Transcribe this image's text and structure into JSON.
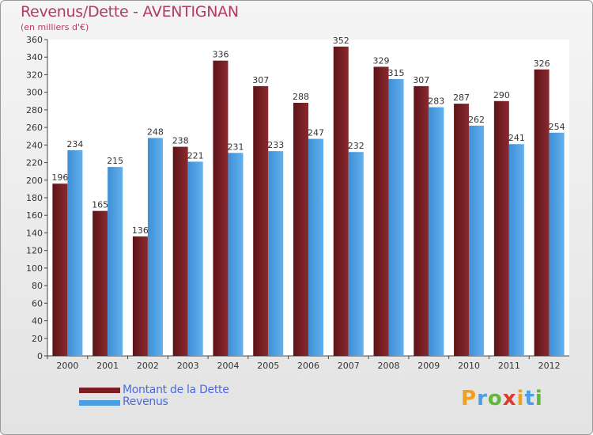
{
  "header": {
    "title": "Revenus/Dette - AVENTIGNAN",
    "subtitle": "(en milliers d'€)"
  },
  "colors": {
    "dette": "#7a1f24",
    "revenus": "#4a9ee2",
    "title": "#b23a63",
    "legend_text": "#4a6be0"
  },
  "legend": {
    "dette_label": "Montant de la Dette",
    "revenus_label": "Revenus"
  },
  "logo": {
    "text": "Proxiti",
    "letters": [
      {
        "char": "P",
        "color": "#f0a020"
      },
      {
        "char": "r",
        "color": "#4a9ee2"
      },
      {
        "char": "o",
        "color": "#5fb83a"
      },
      {
        "char": "x",
        "color": "#e03a2f"
      },
      {
        "char": "i",
        "color": "#f0a020"
      },
      {
        "char": "t",
        "color": "#4a9ee2"
      },
      {
        "char": "i",
        "color": "#5fb83a"
      }
    ]
  },
  "chart_data": {
    "type": "bar",
    "categories": [
      "2000",
      "2001",
      "2002",
      "2003",
      "2004",
      "2005",
      "2006",
      "2007",
      "2008",
      "2009",
      "2010",
      "2011",
      "2012"
    ],
    "series": [
      {
        "name": "Montant de la Dette",
        "values": [
          196,
          165,
          136,
          238,
          336,
          307,
          288,
          352,
          329,
          307,
          287,
          290,
          326
        ]
      },
      {
        "name": "Revenus",
        "values": [
          234,
          215,
          248,
          221,
          231,
          233,
          247,
          232,
          315,
          283,
          262,
          241,
          254
        ]
      }
    ],
    "ylim": [
      0,
      360
    ],
    "yticks": [
      0,
      20,
      40,
      60,
      80,
      100,
      120,
      140,
      160,
      180,
      200,
      220,
      240,
      260,
      280,
      300,
      320,
      340,
      360
    ],
    "grid": false,
    "legend_position": "bottom-left"
  }
}
